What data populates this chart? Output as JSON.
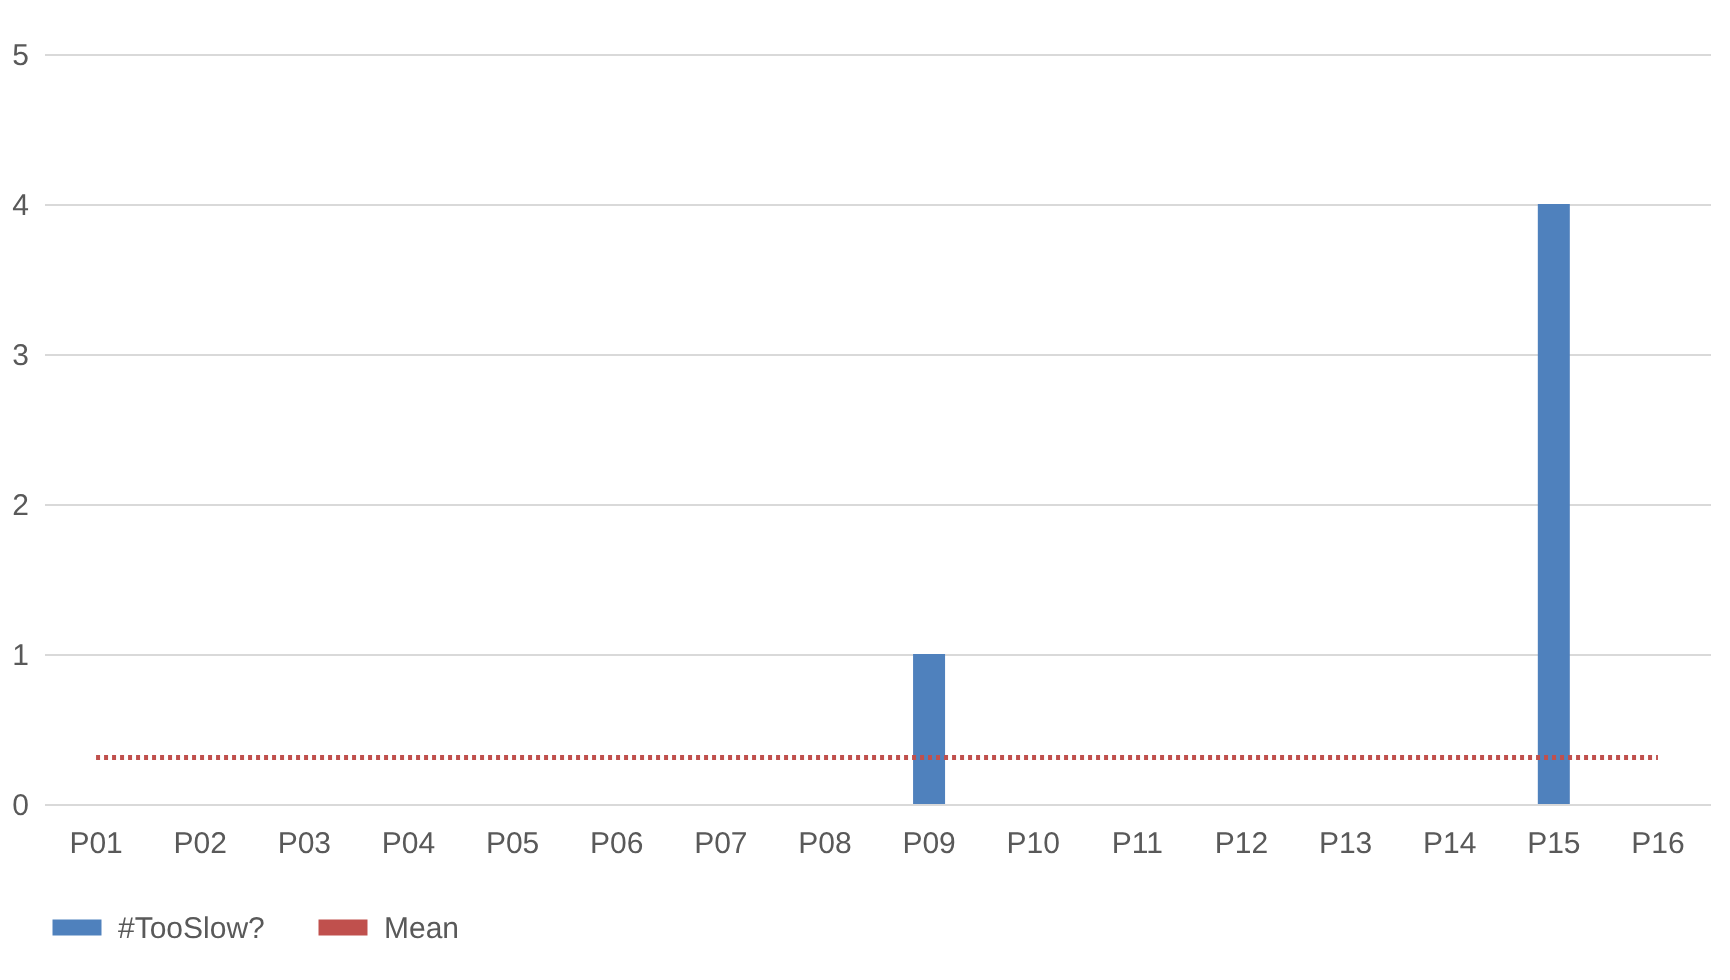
{
  "chart_data": {
    "type": "bar",
    "categories": [
      "P01",
      "P02",
      "P03",
      "P04",
      "P05",
      "P06",
      "P07",
      "P08",
      "P09",
      "P10",
      "P11",
      "P12",
      "P13",
      "P14",
      "P15",
      "P16"
    ],
    "series": [
      {
        "name": "#TooSlow?",
        "color": "#4f81bd",
        "values": [
          0,
          0,
          0,
          0,
          0,
          0,
          0,
          0,
          1,
          0,
          0,
          0,
          0,
          0,
          4,
          0
        ]
      },
      {
        "name": "Mean",
        "color": "#c0504d",
        "type": "line",
        "line_style": "dotted",
        "values": [
          0.31,
          0.31,
          0.31,
          0.31,
          0.31,
          0.31,
          0.31,
          0.31,
          0.31,
          0.31,
          0.31,
          0.31,
          0.31,
          0.31,
          0.31,
          0.31
        ]
      }
    ],
    "ylim": [
      0,
      5
    ],
    "yticks": [
      0,
      1,
      2,
      3,
      4,
      5
    ],
    "grid": "y",
    "legend": "bottom",
    "marker": "none"
  }
}
